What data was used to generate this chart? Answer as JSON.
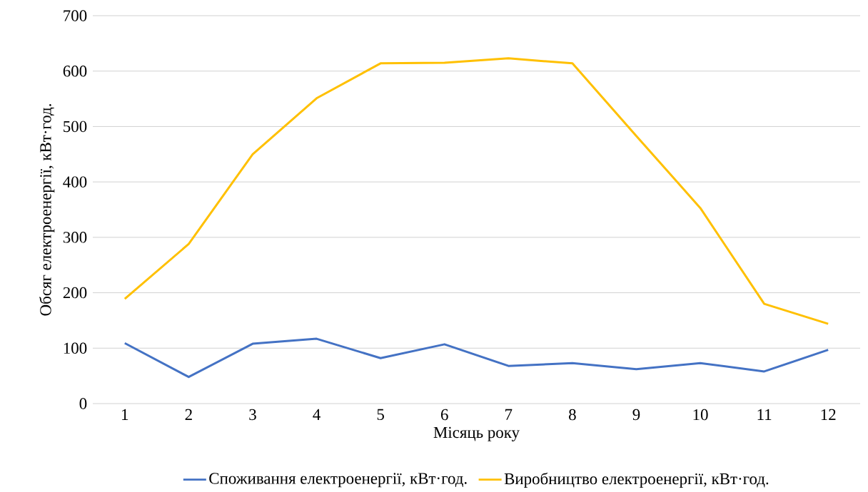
{
  "chart_data": {
    "type": "line",
    "xlabel": "Місяць року",
    "ylabel": "Обсяг електроенергії, кВт·год.",
    "categories": [
      "1",
      "2",
      "3",
      "4",
      "5",
      "6",
      "7",
      "8",
      "9",
      "10",
      "11",
      "12"
    ],
    "series": [
      {
        "name": "Споживання електроенергії, кВт·год.",
        "color": "#4472c4",
        "values": [
          109,
          48,
          108,
          117,
          82,
          107,
          68,
          73,
          62,
          73,
          58,
          97
        ]
      },
      {
        "name": "Виробництво електроенергії, кВт·год.",
        "color": "#ffc000",
        "values": [
          189,
          288,
          450,
          551,
          614,
          615,
          623,
          614,
          483,
          353,
          180,
          144
        ]
      }
    ],
    "ylim": [
      0,
      700
    ],
    "yticks": [
      0,
      100,
      200,
      300,
      400,
      500,
      600,
      700
    ],
    "grid": "y",
    "legend": "bottom",
    "marker": "none",
    "line_style": "solid"
  }
}
